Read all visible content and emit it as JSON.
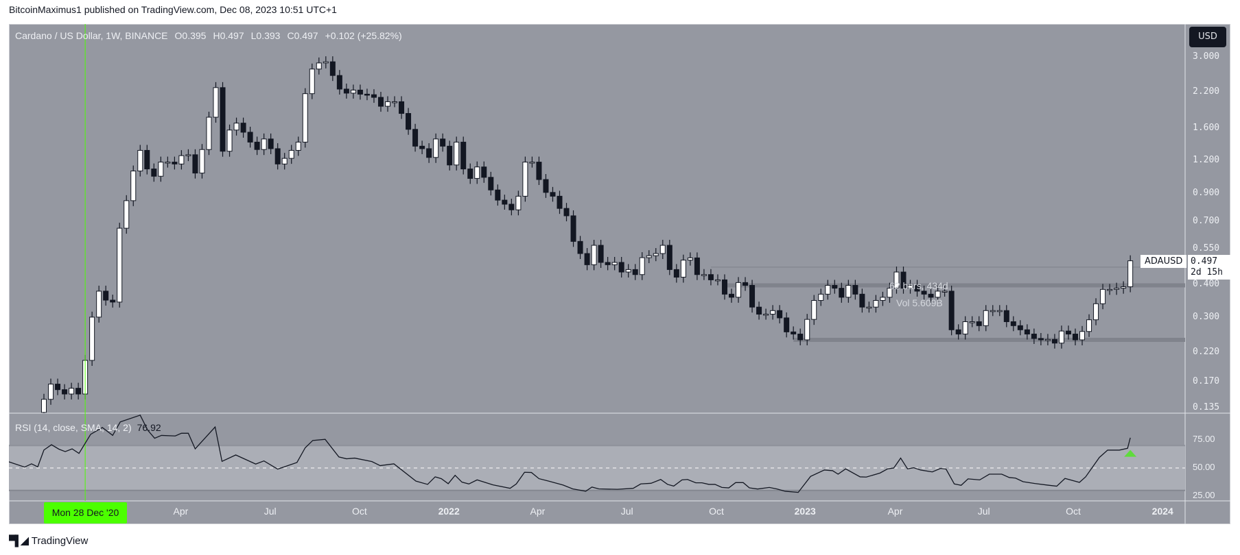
{
  "header": {
    "published": "BitcoinMaximus1 published on TradingView.com, Dec 08, 2023 10:51 UTC+1"
  },
  "legend": {
    "symbol": "Cardano / US Dollar, 1W, BINANCE",
    "open": "O0.395",
    "high": "H0.497",
    "low": "L0.393",
    "close": "C0.497",
    "change": "+0.102 (+25.82%)"
  },
  "rsi_legend": {
    "label": "RSI (14, close, SMA, 14, 2)",
    "value": "76.92"
  },
  "currency_button": "USD",
  "last_price": {
    "symbol": "ADAUSD",
    "price": "0.497",
    "countdown": "2d 15h"
  },
  "measure": {
    "bars": "62 bars, 434d",
    "volume": "Vol 5.609B"
  },
  "crosshair_date": "Mon 28 Dec '20",
  "footer": {
    "brand": "TradingView",
    "logo": "17"
  },
  "colors": {
    "background": "#9598a1",
    "up": "#ffffff",
    "down": "#131722",
    "crosshair": "#4cff00",
    "signal": "#5fdc3c"
  },
  "chart_data": {
    "type": "candlestick",
    "title": "Cardano / US Dollar, 1W, BINANCE",
    "scale": "log",
    "ylim": [
      0.135,
      3.1
    ],
    "price_ticks": [
      "3.000",
      "2.200",
      "1.600",
      "1.200",
      "0.900",
      "0.700",
      "0.550",
      "0.400",
      "0.300",
      "0.220",
      "0.170",
      "0.135"
    ],
    "first_open": 0.13,
    "closes": [
      0.146,
      0.167,
      0.159,
      0.153,
      0.161,
      0.153,
      0.206,
      0.302,
      0.38,
      0.351,
      0.345,
      0.663,
      0.846,
      1.1,
      1.32,
      1.12,
      1.05,
      1.19,
      1.19,
      1.17,
      1.26,
      1.27,
      1.08,
      1.33,
      1.77,
      2.3,
      1.31,
      1.58,
      1.68,
      1.55,
      1.42,
      1.33,
      1.46,
      1.34,
      1.17,
      1.23,
      1.32,
      1.42,
      2.18,
      2.71,
      2.86,
      2.89,
      2.56,
      2.27,
      2.19,
      2.25,
      2.17,
      2.16,
      2.11,
      1.95,
      2.03,
      2.03,
      1.83,
      1.59,
      1.37,
      1.34,
      1.24,
      1.46,
      1.37,
      1.16,
      1.42,
      1.12,
      1.03,
      1.14,
      1.04,
      0.93,
      0.85,
      0.82,
      0.78,
      0.88,
      1.19,
      1.19,
      1.02,
      0.91,
      0.88,
      0.79,
      0.74,
      0.59,
      0.53,
      0.48,
      0.57,
      0.49,
      0.48,
      0.49,
      0.45,
      0.46,
      0.44,
      0.511,
      0.52,
      0.53,
      0.57,
      0.46,
      0.43,
      0.5,
      0.51,
      0.44,
      0.44,
      0.42,
      0.42,
      0.37,
      0.36,
      0.41,
      0.4,
      0.33,
      0.31,
      0.31,
      0.32,
      0.3,
      0.265,
      0.26,
      0.247,
      0.296,
      0.35,
      0.37,
      0.4,
      0.39,
      0.36,
      0.4,
      0.37,
      0.33,
      0.33,
      0.35,
      0.36,
      0.39,
      0.45,
      0.39,
      0.4,
      0.38,
      0.37,
      0.36,
      0.38,
      0.38,
      0.27,
      0.26,
      0.29,
      0.29,
      0.28,
      0.32,
      0.32,
      0.32,
      0.29,
      0.28,
      0.27,
      0.26,
      0.25,
      0.247,
      0.248,
      0.24,
      0.267,
      0.26,
      0.247,
      0.266,
      0.295,
      0.34,
      0.386,
      0.386,
      0.39,
      0.395,
      0.497
    ],
    "horizontal_levels": [
      {
        "price": 0.47,
        "from_week": 97,
        "style": "thin"
      },
      {
        "price": 0.4,
        "from_week": 99,
        "style": "band"
      },
      {
        "price": 0.247,
        "from_week": 109,
        "style": "band"
      }
    ],
    "time_ticks": [
      {
        "label": "Apr",
        "week": 19.9,
        "year": false
      },
      {
        "label": "Jul",
        "week": 32.9,
        "year": false
      },
      {
        "label": "Oct",
        "week": 45.9,
        "year": false
      },
      {
        "label": "2022",
        "week": 58.9,
        "year": true
      },
      {
        "label": "Apr",
        "week": 71.8,
        "year": false
      },
      {
        "label": "Jul",
        "week": 84.8,
        "year": false
      },
      {
        "label": "Oct",
        "week": 97.8,
        "year": false
      },
      {
        "label": "2023",
        "week": 110.7,
        "year": true
      },
      {
        "label": "Apr",
        "week": 123.8,
        "year": false
      },
      {
        "label": "Jul",
        "week": 136.7,
        "year": false
      },
      {
        "label": "Oct",
        "week": 149.7,
        "year": false
      },
      {
        "label": "2024",
        "week": 162.7,
        "year": true
      }
    ],
    "crosshair_week": 6,
    "rsi": {
      "ylim": [
        22,
        100
      ],
      "ticks": [
        "75.00",
        "50.00",
        "25.00"
      ],
      "band": [
        30,
        70
      ],
      "midline": 50,
      "signal_week": 158,
      "signal_value": 63,
      "points": [
        [
          -5.1,
          55.5
        ],
        [
          -2.8,
          50.8
        ],
        [
          -1.8,
          53.7
        ],
        [
          -0.9,
          51
        ],
        [
          0,
          66
        ],
        [
          1.1,
          70.7
        ],
        [
          2.2,
          66.7
        ],
        [
          3.1,
          64.6
        ],
        [
          4.1,
          67
        ],
        [
          5.1,
          63
        ],
        [
          6.8,
          80
        ],
        [
          8.5,
          86
        ],
        [
          10,
          79
        ],
        [
          11.1,
          91
        ],
        [
          14,
          97
        ],
        [
          15.1,
          83.6
        ],
        [
          16.1,
          76.5
        ],
        [
          17.1,
          79
        ],
        [
          19.1,
          78.5
        ],
        [
          20,
          80.9
        ],
        [
          21,
          80.9
        ],
        [
          22,
          67
        ],
        [
          24.9,
          86.5
        ],
        [
          25.9,
          55.9
        ],
        [
          27.9,
          61.6
        ],
        [
          30.8,
          53.5
        ],
        [
          32,
          56.3
        ],
        [
          34,
          49
        ],
        [
          36.8,
          54.9
        ],
        [
          38,
          68
        ],
        [
          39.1,
          74.5
        ],
        [
          40.9,
          75.5
        ],
        [
          42.9,
          59.8
        ],
        [
          44,
          58.2
        ],
        [
          45.2,
          58.8
        ],
        [
          47.7,
          55.7
        ],
        [
          48.9,
          52.1
        ],
        [
          50.9,
          53.7
        ],
        [
          54.1,
          38.3
        ],
        [
          55.8,
          35.4
        ],
        [
          56.9,
          42.1
        ],
        [
          57.8,
          40.5
        ],
        [
          58.8,
          36
        ],
        [
          59.8,
          43.5
        ],
        [
          60.8,
          37.4
        ],
        [
          61.8,
          35.8
        ],
        [
          63,
          39.4
        ],
        [
          65.3,
          35
        ],
        [
          67.8,
          31.9
        ],
        [
          68.7,
          35.8
        ],
        [
          69.9,
          46.2
        ],
        [
          70.9,
          46
        ],
        [
          72,
          40.5
        ],
        [
          73.3,
          38.5
        ],
        [
          75.5,
          34.8
        ],
        [
          76.9,
          31.4
        ],
        [
          78.8,
          29.3
        ],
        [
          79.7,
          33
        ],
        [
          80.7,
          31.4
        ],
        [
          83.4,
          31
        ],
        [
          85.7,
          31.9
        ],
        [
          86.8,
          35.8
        ],
        [
          88.3,
          36.4
        ],
        [
          89.7,
          39.8
        ],
        [
          90.7,
          35.4
        ],
        [
          91.6,
          33.9
        ],
        [
          92.8,
          39.4
        ],
        [
          93.6,
          39.8
        ],
        [
          94.8,
          36.8
        ],
        [
          95.7,
          36.8
        ],
        [
          96.7,
          35.4
        ],
        [
          97.6,
          35.4
        ],
        [
          98.6,
          32.7
        ],
        [
          99.6,
          32.3
        ],
        [
          100.6,
          37
        ],
        [
          101.7,
          37
        ],
        [
          102.6,
          32.3
        ],
        [
          103.8,
          31.3
        ],
        [
          105.5,
          32.7
        ],
        [
          106.6,
          31.3
        ],
        [
          107.8,
          29.3
        ],
        [
          109.7,
          28.3
        ],
        [
          111.5,
          42.5
        ],
        [
          113.5,
          48.2
        ],
        [
          114.7,
          47.6
        ],
        [
          115.5,
          44.5
        ],
        [
          116.6,
          49.2
        ],
        [
          118.7,
          42.1
        ],
        [
          119.6,
          41.9
        ],
        [
          121.6,
          45.5
        ],
        [
          122.7,
          49.2
        ],
        [
          123.6,
          50
        ],
        [
          124.6,
          58.8
        ],
        [
          125.6,
          49.2
        ],
        [
          126.5,
          50.2
        ],
        [
          127.5,
          48.2
        ],
        [
          129.2,
          46.5
        ],
        [
          130.4,
          49.6
        ],
        [
          131.2,
          49
        ],
        [
          132.4,
          35.8
        ],
        [
          133.4,
          34.6
        ],
        [
          134.4,
          40.3
        ],
        [
          136.1,
          39.4
        ],
        [
          137.5,
          44.5
        ],
        [
          139.3,
          44.5
        ],
        [
          140.4,
          41.5
        ],
        [
          141.3,
          41
        ],
        [
          142.4,
          37.8
        ],
        [
          144.1,
          36.2
        ],
        [
          145.9,
          34.8
        ],
        [
          147.3,
          33.8
        ],
        [
          148.5,
          40.7
        ],
        [
          150.6,
          37.2
        ],
        [
          151.5,
          42.1
        ],
        [
          153.5,
          59.4
        ],
        [
          154.7,
          65.9
        ],
        [
          156.4,
          65.9
        ],
        [
          157.6,
          67.5
        ],
        [
          158,
          76.92
        ]
      ]
    }
  }
}
